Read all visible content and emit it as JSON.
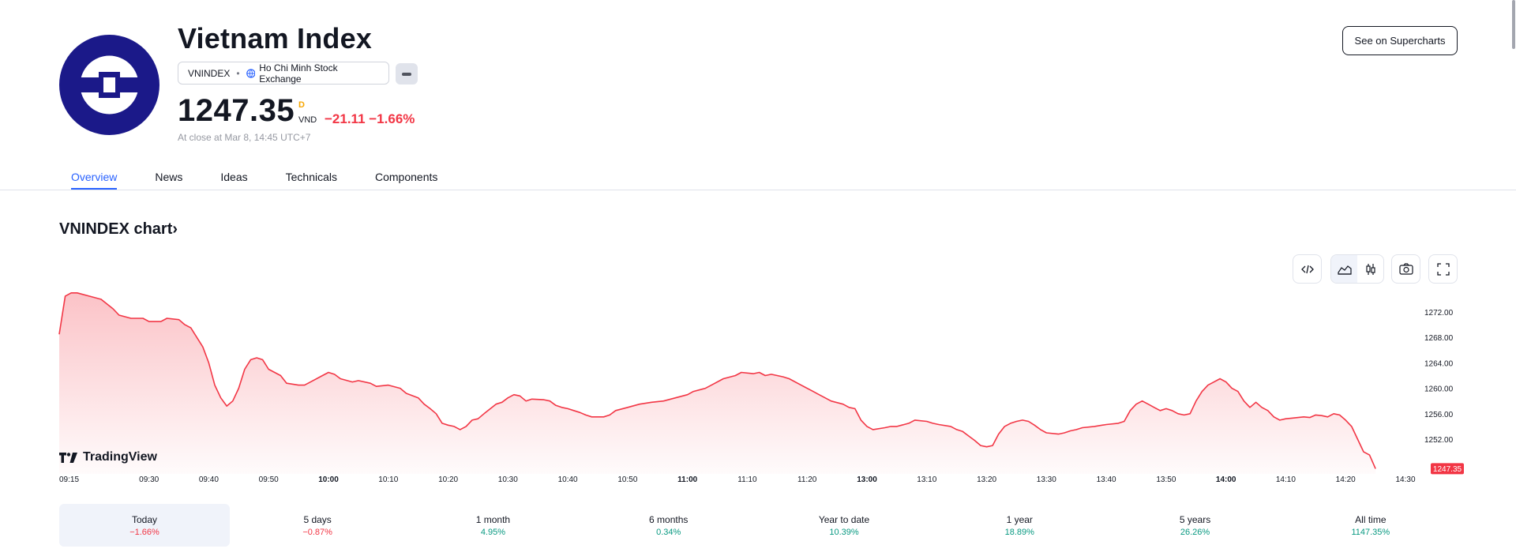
{
  "header": {
    "title": "Vietnam Index",
    "symbol": "VNINDEX",
    "exchange": "Ho Chi Minh Stock Exchange",
    "price": "1247.35",
    "price_marker": "D",
    "currency": "VND",
    "change": "−21.11 −1.66%",
    "close_info": "At close at Mar 8, 14:45 UTC+7",
    "supercharts_button": "See on Supercharts"
  },
  "tabs": [
    {
      "label": "Overview",
      "active": true
    },
    {
      "label": "News"
    },
    {
      "label": "Ideas"
    },
    {
      "label": "Technicals"
    },
    {
      "label": "Components"
    }
  ],
  "chart_section": {
    "heading": "VNINDEX chart",
    "heading_chevron": "›",
    "brand": "TradingView",
    "icons": [
      "embed-icon",
      "area-chart-icon",
      "candles-icon",
      "camera-icon",
      "fullscreen-icon"
    ]
  },
  "colors": {
    "line": "#f23645",
    "negative": "#f23645",
    "positive": "#089981",
    "accent": "#2962ff",
    "logo_bg": "#1b1989"
  },
  "chart_data": {
    "type": "area",
    "title": "",
    "xlabel": "",
    "ylabel": "",
    "ylim": [
      1247,
      1276
    ],
    "y_ticks": [
      1252,
      1256,
      1260,
      1264,
      1268,
      1272
    ],
    "y_tick_labels": [
      "1252.00",
      "1256.00",
      "1260.00",
      "1264.00",
      "1268.00",
      "1272.00"
    ],
    "last_value_label": "1247.35",
    "x_ticks": [
      {
        "label": "09:15",
        "t": 0
      },
      {
        "label": "09:30",
        "t": 15
      },
      {
        "label": "09:40",
        "t": 25
      },
      {
        "label": "09:50",
        "t": 35
      },
      {
        "label": "10:00",
        "t": 45,
        "bold": true
      },
      {
        "label": "10:10",
        "t": 55
      },
      {
        "label": "10:20",
        "t": 65
      },
      {
        "label": "10:30",
        "t": 75
      },
      {
        "label": "10:40",
        "t": 85
      },
      {
        "label": "10:50",
        "t": 95
      },
      {
        "label": "11:00",
        "t": 105,
        "bold": true
      },
      {
        "label": "11:10",
        "t": 115
      },
      {
        "label": "11:20",
        "t": 125
      },
      {
        "label": "13:00",
        "t": 135,
        "bold": true
      },
      {
        "label": "13:10",
        "t": 145
      },
      {
        "label": "13:20",
        "t": 155
      },
      {
        "label": "13:30",
        "t": 165
      },
      {
        "label": "13:40",
        "t": 175
      },
      {
        "label": "13:50",
        "t": 185
      },
      {
        "label": "14:00",
        "t": 195,
        "bold": true
      },
      {
        "label": "14:10",
        "t": 205
      },
      {
        "label": "14:20",
        "t": 215
      },
      {
        "label": "14:30",
        "t": 225
      }
    ],
    "series": [
      {
        "points": [
          [
            0,
            1268.5
          ],
          [
            1,
            1274.5
          ],
          [
            2,
            1275
          ],
          [
            3,
            1275
          ],
          [
            5,
            1274.5
          ],
          [
            7,
            1274
          ],
          [
            9,
            1272.5
          ],
          [
            10,
            1271.5
          ],
          [
            12,
            1271
          ],
          [
            14,
            1271
          ],
          [
            15,
            1270.5
          ],
          [
            17,
            1270.5
          ],
          [
            18,
            1271
          ],
          [
            20,
            1270.8
          ],
          [
            21,
            1270
          ],
          [
            22,
            1269.5
          ],
          [
            23,
            1268
          ],
          [
            24,
            1266.5
          ],
          [
            25,
            1264
          ],
          [
            26,
            1260.5
          ],
          [
            27,
            1258.5
          ],
          [
            28,
            1257.2
          ],
          [
            29,
            1258
          ],
          [
            30,
            1260
          ],
          [
            31,
            1263
          ],
          [
            32,
            1264.5
          ],
          [
            33,
            1264.8
          ],
          [
            34,
            1264.5
          ],
          [
            35,
            1263
          ],
          [
            36,
            1262.5
          ],
          [
            37,
            1262
          ],
          [
            38,
            1260.8
          ],
          [
            40,
            1260.5
          ],
          [
            41,
            1260.5
          ],
          [
            42,
            1261
          ],
          [
            44,
            1262
          ],
          [
            45,
            1262.5
          ],
          [
            46,
            1262.2
          ],
          [
            47,
            1261.5
          ],
          [
            49,
            1261
          ],
          [
            50,
            1261.2
          ],
          [
            52,
            1260.8
          ],
          [
            53,
            1260.3
          ],
          [
            55,
            1260.5
          ],
          [
            57,
            1260
          ],
          [
            58,
            1259.2
          ],
          [
            60,
            1258.5
          ],
          [
            61,
            1257.5
          ],
          [
            62,
            1256.8
          ],
          [
            63,
            1256
          ],
          [
            64,
            1254.5
          ],
          [
            65,
            1254.2
          ],
          [
            66,
            1254
          ],
          [
            67,
            1253.5
          ],
          [
            68,
            1254
          ],
          [
            69,
            1255
          ],
          [
            70,
            1255.2
          ],
          [
            71,
            1256
          ],
          [
            73,
            1257.5
          ],
          [
            74,
            1257.8
          ],
          [
            75,
            1258.5
          ],
          [
            76,
            1259
          ],
          [
            77,
            1258.8
          ],
          [
            78,
            1258
          ],
          [
            79,
            1258.3
          ],
          [
            81,
            1258.2
          ],
          [
            82,
            1258
          ],
          [
            83,
            1257.3
          ],
          [
            84,
            1257
          ],
          [
            85,
            1256.8
          ],
          [
            86,
            1256.5
          ],
          [
            87,
            1256.2
          ],
          [
            88,
            1255.8
          ],
          [
            89,
            1255.5
          ],
          [
            91,
            1255.5
          ],
          [
            92,
            1255.8
          ],
          [
            93,
            1256.5
          ],
          [
            95,
            1257
          ],
          [
            97,
            1257.5
          ],
          [
            99,
            1257.8
          ],
          [
            101,
            1258
          ],
          [
            103,
            1258.5
          ],
          [
            105,
            1259
          ],
          [
            106,
            1259.5
          ],
          [
            108,
            1260
          ],
          [
            109,
            1260.5
          ],
          [
            111,
            1261.5
          ],
          [
            113,
            1262
          ],
          [
            114,
            1262.5
          ],
          [
            116,
            1262.3
          ],
          [
            117,
            1262.5
          ],
          [
            118,
            1262
          ],
          [
            119,
            1262.2
          ],
          [
            121,
            1261.8
          ],
          [
            122,
            1261.5
          ],
          [
            124,
            1260.5
          ],
          [
            126,
            1259.5
          ],
          [
            127,
            1259
          ],
          [
            128,
            1258.5
          ],
          [
            129,
            1258
          ],
          [
            131,
            1257.5
          ],
          [
            132,
            1257
          ],
          [
            133,
            1256.8
          ],
          [
            134,
            1255
          ],
          [
            135,
            1254
          ],
          [
            136,
            1253.5
          ],
          [
            138,
            1253.8
          ],
          [
            139,
            1254
          ],
          [
            140,
            1254
          ],
          [
            142,
            1254.5
          ],
          [
            143,
            1255
          ],
          [
            145,
            1254.8
          ],
          [
            146,
            1254.5
          ],
          [
            147,
            1254.3
          ],
          [
            149,
            1254
          ],
          [
            150,
            1253.5
          ],
          [
            151,
            1253.2
          ],
          [
            152,
            1252.5
          ],
          [
            153,
            1251.8
          ],
          [
            154,
            1251
          ],
          [
            155,
            1250.8
          ],
          [
            156,
            1251
          ],
          [
            157,
            1252.8
          ],
          [
            158,
            1254
          ],
          [
            159,
            1254.5
          ],
          [
            160,
            1254.8
          ],
          [
            161,
            1255
          ],
          [
            162,
            1254.8
          ],
          [
            163,
            1254.2
          ],
          [
            164,
            1253.5
          ],
          [
            165,
            1253
          ],
          [
            167,
            1252.8
          ],
          [
            168,
            1253
          ],
          [
            169,
            1253.3
          ],
          [
            170,
            1253.5
          ],
          [
            171,
            1253.8
          ],
          [
            173,
            1254
          ],
          [
            175,
            1254.3
          ],
          [
            177,
            1254.5
          ],
          [
            178,
            1254.8
          ],
          [
            179,
            1256.5
          ],
          [
            180,
            1257.5
          ],
          [
            181,
            1258
          ],
          [
            182,
            1257.5
          ],
          [
            183,
            1257
          ],
          [
            184,
            1256.5
          ],
          [
            185,
            1256.8
          ],
          [
            186,
            1256.5
          ],
          [
            187,
            1256
          ],
          [
            188,
            1255.8
          ],
          [
            189,
            1256
          ],
          [
            190,
            1258
          ],
          [
            191,
            1259.5
          ],
          [
            192,
            1260.5
          ],
          [
            193,
            1261
          ],
          [
            194,
            1261.5
          ],
          [
            195,
            1261
          ],
          [
            196,
            1260
          ],
          [
            197,
            1259.5
          ],
          [
            198,
            1258
          ],
          [
            199,
            1257
          ],
          [
            200,
            1257.8
          ],
          [
            201,
            1257
          ],
          [
            202,
            1256.5
          ],
          [
            203,
            1255.5
          ],
          [
            204,
            1255
          ],
          [
            205,
            1255.2
          ],
          [
            206,
            1255.3
          ],
          [
            208,
            1255.5
          ],
          [
            209,
            1255.4
          ],
          [
            210,
            1255.8
          ],
          [
            211,
            1255.7
          ],
          [
            212,
            1255.5
          ],
          [
            213,
            1256
          ],
          [
            214,
            1255.8
          ],
          [
            215,
            1255
          ],
          [
            216,
            1254
          ],
          [
            217,
            1252
          ],
          [
            218,
            1250
          ],
          [
            219,
            1249.5
          ],
          [
            220,
            1247.35
          ]
        ]
      }
    ]
  },
  "periods": [
    {
      "label": "Today",
      "value": "−1.66%",
      "sign": "neg",
      "active": true
    },
    {
      "label": "5 days",
      "value": "−0.87%",
      "sign": "neg"
    },
    {
      "label": "1 month",
      "value": "4.95%",
      "sign": "pos"
    },
    {
      "label": "6 months",
      "value": "0.34%",
      "sign": "pos"
    },
    {
      "label": "Year to date",
      "value": "10.39%",
      "sign": "pos"
    },
    {
      "label": "1 year",
      "value": "18.89%",
      "sign": "pos"
    },
    {
      "label": "5 years",
      "value": "26.26%",
      "sign": "pos"
    },
    {
      "label": "All time",
      "value": "1147.35%",
      "sign": "pos"
    }
  ]
}
